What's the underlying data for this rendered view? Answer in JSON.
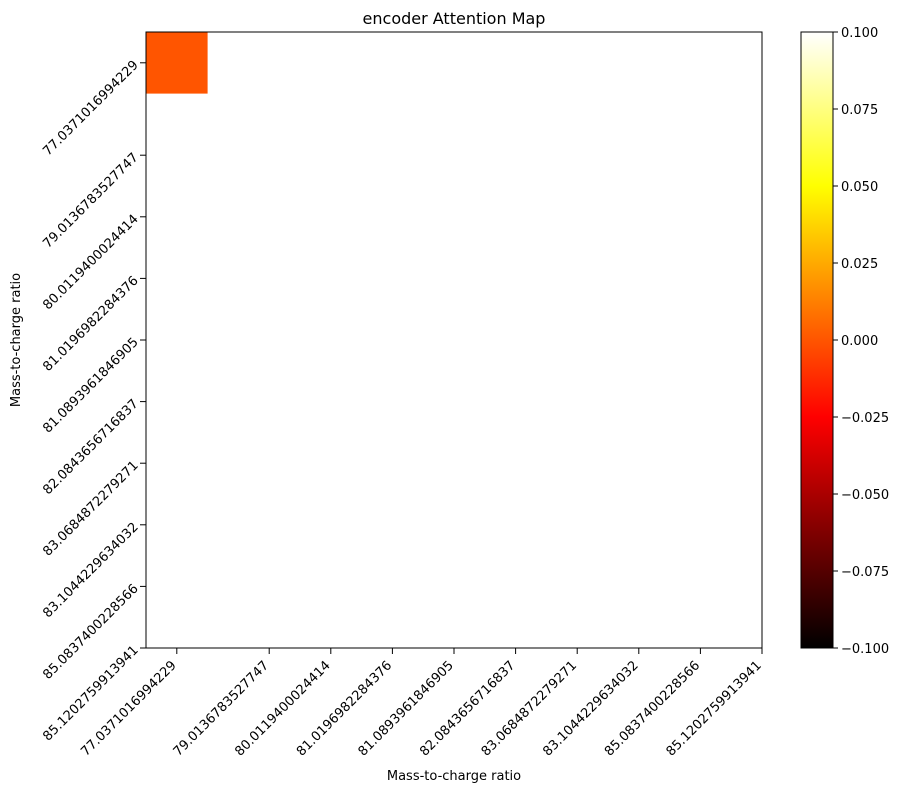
{
  "chart_data": {
    "type": "heatmap",
    "title": "encoder Attention Map",
    "xlabel": "Mass-to-charge ratio",
    "ylabel": "Mass-to-charge ratio",
    "x_tick_labels": [
      "77.0371016994229",
      "79.0136783527747",
      "80.0119400024414",
      "81.0196982284376",
      "81.0893961846905",
      "82.0843656716837",
      "83.0684872279271",
      "83.1044229634032",
      "85.0837400228566",
      "85.1202759913941"
    ],
    "y_tick_labels": [
      "77.0371016994229",
      "79.0136783527747",
      "80.0119400024414",
      "81.0196982284376",
      "81.0893961846905",
      "82.0843656716837",
      "83.0684872279271",
      "83.1044229634032",
      "85.0837400228566",
      "85.1202759913941"
    ],
    "grid_shape": [
      10,
      10
    ],
    "cells": [
      {
        "row": 0,
        "col": 0,
        "value": 0.0
      }
    ],
    "colormap": "hot",
    "vmin": -0.1,
    "vmax": 0.1,
    "colorbar_ticks": [
      0.1,
      0.075,
      0.05,
      0.025,
      0.0,
      -0.025,
      -0.05,
      -0.075,
      -0.1
    ],
    "colorbar_tick_labels": [
      "0.100",
      "0.075",
      "0.050",
      "0.025",
      "0.000",
      "−0.025",
      "−0.050",
      "−0.075",
      "−0.100"
    ],
    "grid": false
  }
}
